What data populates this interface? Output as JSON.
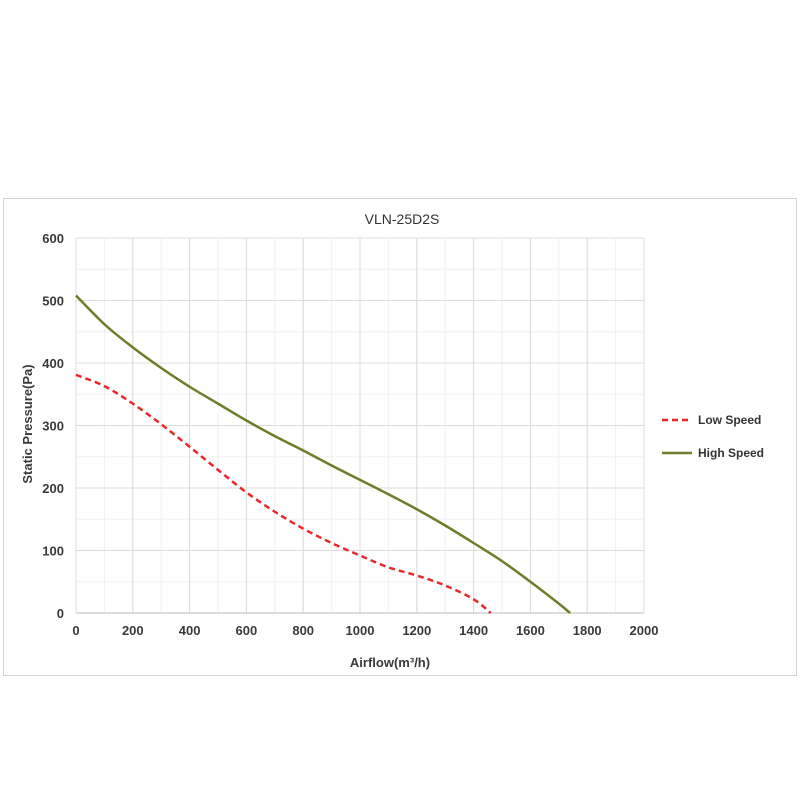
{
  "chart_data": {
    "type": "line",
    "title": "VLN-25D2S",
    "xlabel": "Airflow(m³/h)",
    "ylabel": "Static Pressure(Pa)",
    "xlim": [
      0,
      2000
    ],
    "ylim": [
      0,
      600
    ],
    "x_ticks": [
      0,
      200,
      400,
      600,
      800,
      1000,
      1200,
      1400,
      1600,
      1800,
      2000
    ],
    "y_ticks": [
      0,
      100,
      200,
      300,
      400,
      500,
      600
    ],
    "grid": true,
    "legend_position": "right",
    "series": [
      {
        "name": "Low Speed",
        "color": "#e8282b",
        "style": "dashed",
        "x": [
          0,
          100,
          200,
          300,
          400,
          500,
          600,
          700,
          800,
          900,
          1000,
          1100,
          1200,
          1300,
          1400,
          1460
        ],
        "y": [
          381,
          363,
          335,
          302,
          266,
          229,
          193,
          162,
          135,
          112,
          92,
          73,
          60,
          44,
          22,
          0
        ]
      },
      {
        "name": "High Speed",
        "color": "#6b7e2a",
        "style": "solid",
        "x": [
          0,
          100,
          200,
          300,
          400,
          500,
          600,
          700,
          800,
          900,
          1000,
          1100,
          1200,
          1300,
          1400,
          1500,
          1600,
          1700,
          1740
        ],
        "y": [
          508,
          462,
          425,
          392,
          362,
          335,
          308,
          283,
          260,
          236,
          213,
          190,
          166,
          140,
          112,
          83,
          50,
          15,
          0
        ]
      }
    ]
  }
}
